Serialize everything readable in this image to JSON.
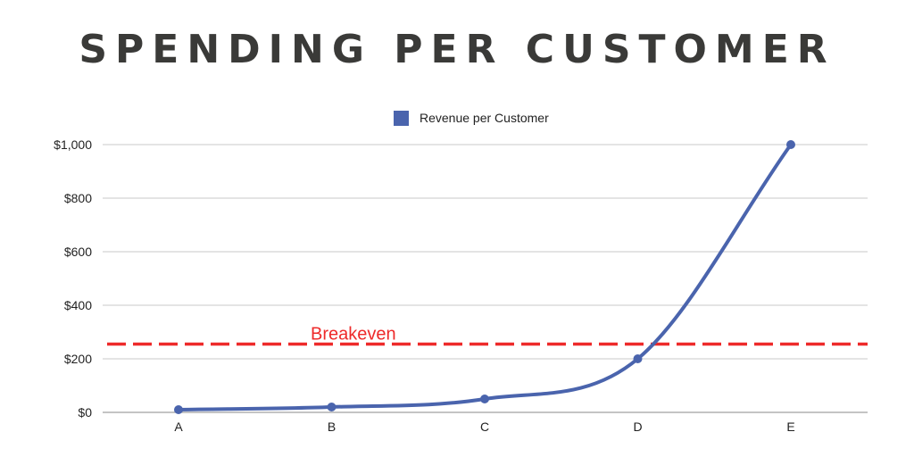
{
  "chart_data": {
    "type": "line",
    "title": "SPENDING PER CUSTOMER",
    "categories": [
      "A",
      "B",
      "C",
      "D",
      "E"
    ],
    "series": [
      {
        "name": "Revenue per Customer",
        "values": [
          10,
          20,
          50,
          200,
          1000
        ],
        "color": "#4a64ad"
      }
    ],
    "ylim": [
      0,
      1000
    ],
    "yticks": [
      0,
      200,
      400,
      600,
      800,
      1000
    ],
    "ytick_labels": [
      "$0",
      "$200",
      "$400",
      "$600",
      "$800",
      "$1,000"
    ],
    "grid": true,
    "legend": "top-center",
    "annotations": [
      {
        "type": "hline",
        "label": "Breakeven",
        "y": 255,
        "color": "#ee2a2a",
        "style": "dashed"
      }
    ]
  }
}
